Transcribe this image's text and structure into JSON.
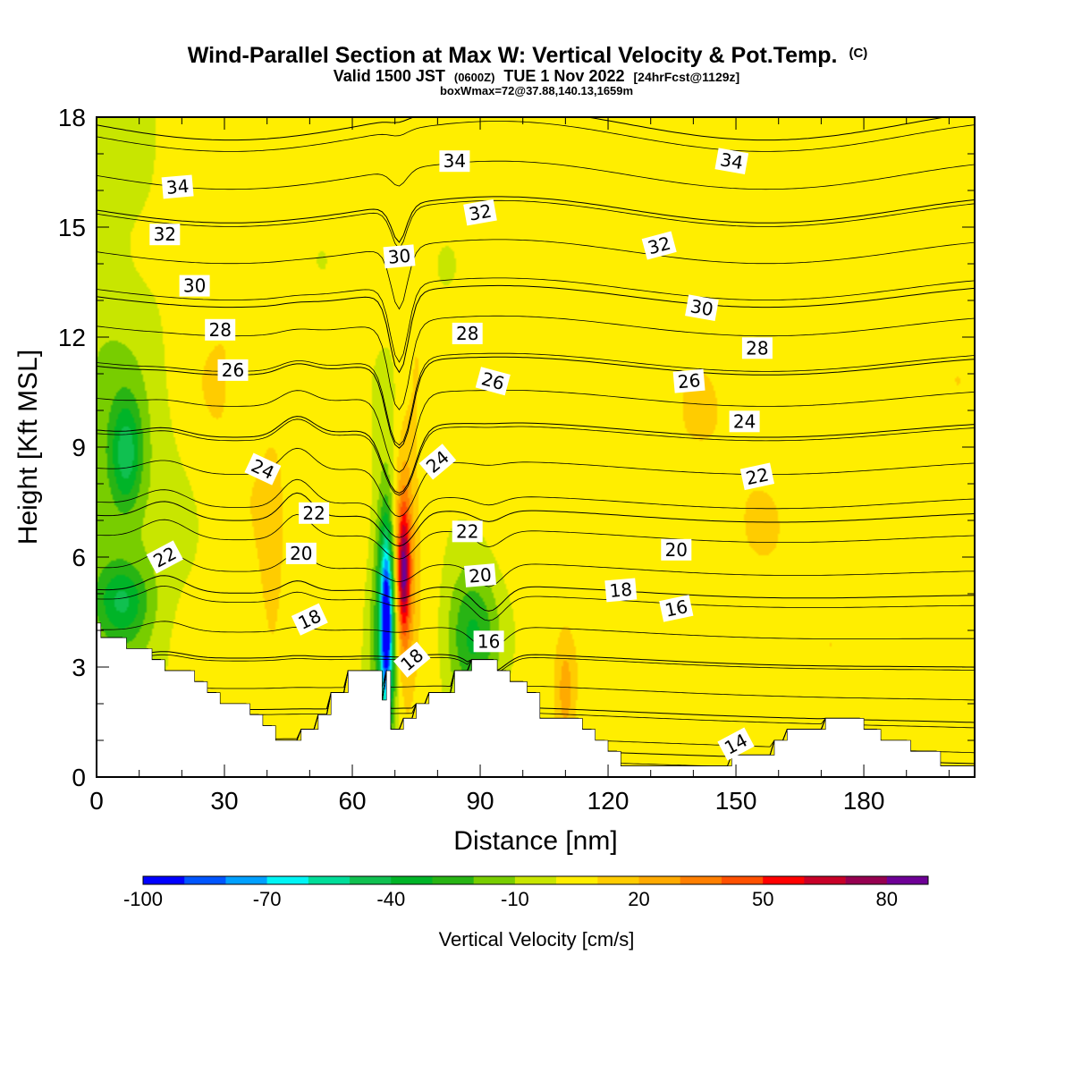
{
  "titles": {
    "main": "Wind-Parallel Section at Max W: Vertical Velocity & Pot.Temp.",
    "copyright": "(C)",
    "valid_prefix": "Valid 1500 JST",
    "valid_utc": "(0600Z)",
    "valid_date": "TUE 1 Nov 2022",
    "valid_fcst": "[24hrFcst@1129z]",
    "box": "boxWmax=72@37.88,140.13,1659m"
  },
  "chart_data": {
    "type": "contour",
    "xlabel": "Distance [nm]",
    "ylabel": "Height [Kft MSL]",
    "xlim": [
      0,
      206
    ],
    "ylim": [
      0,
      18
    ],
    "x_ticks": [
      0,
      30,
      60,
      90,
      120,
      150,
      180
    ],
    "y_ticks": [
      0,
      3,
      6,
      9,
      12,
      15,
      18
    ],
    "colorbar": {
      "label": "Vertical Velocity [cm/s]",
      "tick_values": [
        -100,
        -70,
        -40,
        -10,
        20,
        50,
        80
      ],
      "bounds": [
        -100,
        -90,
        -80,
        -70,
        -60,
        -50,
        -40,
        -30,
        -20,
        -10,
        0,
        10,
        20,
        30,
        40,
        50,
        60,
        70,
        80
      ],
      "colors": [
        "#0000ff",
        "#0055ff",
        "#00a0ff",
        "#00f5f5",
        "#00dd99",
        "#10c050",
        "#00b428",
        "#28b414",
        "#78cd00",
        "#c8e600",
        "#ffee00",
        "#ffcc00",
        "#ffaa00",
        "#ff7f00",
        "#ff5000",
        "#ff0000",
        "#c80028",
        "#960050",
        "#6e0096"
      ]
    },
    "terrain": [
      [
        0,
        4.2
      ],
      [
        1,
        4.2
      ],
      [
        1,
        4.2
      ],
      [
        1,
        3.8
      ],
      [
        7,
        3.8
      ],
      [
        7,
        3.5
      ],
      [
        13,
        3.5
      ],
      [
        13,
        3.2
      ],
      [
        16,
        3.2
      ],
      [
        16,
        2.9
      ],
      [
        23,
        2.9
      ],
      [
        23,
        2.6
      ],
      [
        26,
        2.6
      ],
      [
        26,
        2.3
      ],
      [
        29,
        2.3
      ],
      [
        29,
        2
      ],
      [
        36,
        2
      ],
      [
        36,
        1.7
      ],
      [
        39,
        1.7
      ],
      [
        39,
        1.4
      ],
      [
        42,
        1.4
      ],
      [
        42,
        1
      ],
      [
        48,
        1
      ],
      [
        48,
        1.3
      ],
      [
        52,
        1.3
      ],
      [
        52,
        1.7
      ],
      [
        55,
        1.7
      ],
      [
        55,
        2.3
      ],
      [
        59,
        2.3
      ],
      [
        59,
        2.9
      ],
      [
        67,
        2.9
      ],
      [
        67,
        2.1
      ],
      [
        68,
        2.1
      ],
      [
        68,
        2.9
      ],
      [
        69,
        2.9
      ],
      [
        69,
        1.3
      ],
      [
        72,
        1.3
      ],
      [
        72,
        1.6
      ],
      [
        75,
        1.6
      ],
      [
        75,
        2
      ],
      [
        78,
        2
      ],
      [
        78,
        2.3
      ],
      [
        84,
        2.3
      ],
      [
        84,
        2.9
      ],
      [
        88,
        2.9
      ],
      [
        88,
        3.2
      ],
      [
        94,
        3.2
      ],
      [
        94,
        2.9
      ],
      [
        97,
        2.9
      ],
      [
        97,
        2.6
      ],
      [
        101,
        2.6
      ],
      [
        101,
        2.3
      ],
      [
        104,
        2.3
      ],
      [
        104,
        1.6
      ],
      [
        114,
        1.6
      ],
      [
        114,
        1.3
      ],
      [
        117,
        1.3
      ],
      [
        117,
        1
      ],
      [
        120,
        1
      ],
      [
        120,
        0.7
      ],
      [
        123,
        0.7
      ],
      [
        123,
        0.3
      ],
      [
        149,
        0.3
      ],
      [
        149,
        0.6
      ],
      [
        159,
        0.6
      ],
      [
        159,
        1
      ],
      [
        162,
        1
      ],
      [
        162,
        1.3
      ],
      [
        171,
        1.3
      ],
      [
        171,
        1.6
      ],
      [
        180,
        1.6
      ],
      [
        180,
        1.3
      ],
      [
        184,
        1.3
      ],
      [
        184,
        1
      ],
      [
        191,
        1
      ],
      [
        191,
        0.7
      ],
      [
        198,
        0.7
      ],
      [
        198,
        0.3
      ],
      [
        206,
        0.3
      ]
    ],
    "velocity_features": [
      {
        "x": 3.5,
        "z": 6.5,
        "rx": 14,
        "rz": 11,
        "w": -18
      },
      {
        "x": 7,
        "z": 8.8,
        "rx": 3.5,
        "rz": 1.4,
        "w": -35
      },
      {
        "x": 6,
        "z": 4.8,
        "rx": 6,
        "rz": 1,
        "w": -30
      },
      {
        "x": 30,
        "z": 9.3,
        "rx": 8,
        "rz": 6,
        "w": 4
      },
      {
        "x": 41,
        "z": 5.2,
        "rx": 3,
        "rz": 3.5,
        "w": 10
      },
      {
        "x": 75,
        "z": 11.5,
        "rx": 3,
        "rz": 2.5,
        "w": 7
      },
      {
        "x": 101,
        "z": 11.3,
        "rx": 4,
        "rz": 4,
        "w": 3
      },
      {
        "x": 68,
        "z": 4.5,
        "rx": 3.6,
        "rz": 4,
        "w": -42
      },
      {
        "x": 68,
        "z": 4.2,
        "rx": 1.4,
        "rz": 2.4,
        "w": -78
      },
      {
        "x": 72,
        "z": 5.5,
        "rx": 2.6,
        "rz": 3.3,
        "w": 40
      },
      {
        "x": 72,
        "z": 5.6,
        "rx": 1.3,
        "rz": 1.6,
        "w": 50
      },
      {
        "x": 88,
        "z": 3.8,
        "rx": 6.5,
        "rz": 2,
        "w": -40
      },
      {
        "x": 110,
        "z": 2.3,
        "rx": 2,
        "rz": 1.4,
        "w": 18
      },
      {
        "x": 90,
        "z": 15.5,
        "rx": 22,
        "rz": 3,
        "w": -4
      },
      {
        "x": 145,
        "z": 9.5,
        "rx": 18,
        "rz": 7,
        "w": 2
      },
      {
        "x": 200,
        "z": 12,
        "rx": 6,
        "rz": 8,
        "w": 1
      }
    ],
    "isentropes": [
      {
        "base": 13.5,
        "label": "14"
      },
      {
        "base": 15,
        "label": "16"
      },
      {
        "base": 16.7,
        "label": "18"
      },
      {
        "base": 18.6,
        "label": "20"
      },
      {
        "base": 20.8,
        "label": "22"
      },
      {
        "base": 23.1,
        "label": "24"
      },
      {
        "base": 25.6,
        "label": "26"
      },
      {
        "base": 27.4,
        "label": "28"
      },
      {
        "base": 29.3,
        "label": "30"
      },
      {
        "base": 31.6,
        "label": "32"
      },
      {
        "base": 33.8,
        "label": "34"
      }
    ],
    "isentrope_labels": [
      {
        "x": 150,
        "z": 0.9,
        "text": "14",
        "angle": -28
      },
      {
        "x": 136,
        "z": 4.6,
        "text": "16",
        "angle": -12
      },
      {
        "x": 92,
        "z": 3.7,
        "text": "16",
        "angle": 0
      },
      {
        "x": 50,
        "z": 4.3,
        "text": "18",
        "angle": -25
      },
      {
        "x": 74,
        "z": 3.2,
        "text": "18",
        "angle": -40
      },
      {
        "x": 123,
        "z": 5.1,
        "text": "18",
        "angle": -5
      },
      {
        "x": 48,
        "z": 6.1,
        "text": "20",
        "angle": 0
      },
      {
        "x": 90,
        "z": 5.5,
        "text": "20",
        "angle": -5
      },
      {
        "x": 136,
        "z": 6.2,
        "text": "20",
        "angle": 0
      },
      {
        "x": 16,
        "z": 6,
        "text": "22",
        "angle": -28
      },
      {
        "x": 51,
        "z": 7.2,
        "text": "22",
        "angle": 0
      },
      {
        "x": 87,
        "z": 6.7,
        "text": "22",
        "angle": 0
      },
      {
        "x": 155,
        "z": 8.2,
        "text": "22",
        "angle": -12
      },
      {
        "x": 39,
        "z": 8.4,
        "text": "24",
        "angle": 25
      },
      {
        "x": 80,
        "z": 8.6,
        "text": "24",
        "angle": -40
      },
      {
        "x": 152,
        "z": 9.7,
        "text": "24",
        "angle": 0
      },
      {
        "x": 32,
        "z": 11.1,
        "text": "26",
        "angle": 0
      },
      {
        "x": 93,
        "z": 10.8,
        "text": "26",
        "angle": 15
      },
      {
        "x": 139,
        "z": 10.8,
        "text": "26",
        "angle": -5
      },
      {
        "x": 29,
        "z": 12.2,
        "text": "28",
        "angle": 0
      },
      {
        "x": 87,
        "z": 12.1,
        "text": "28",
        "angle": 0
      },
      {
        "x": 155,
        "z": 11.7,
        "text": "28",
        "angle": 0
      },
      {
        "x": 23,
        "z": 13.4,
        "text": "30",
        "angle": 0
      },
      {
        "x": 71,
        "z": 14.2,
        "text": "30",
        "angle": -5
      },
      {
        "x": 142,
        "z": 12.8,
        "text": "30",
        "angle": 10
      },
      {
        "x": 16,
        "z": 14.8,
        "text": "32",
        "angle": 0
      },
      {
        "x": 90,
        "z": 15.4,
        "text": "32",
        "angle": -10
      },
      {
        "x": 132,
        "z": 14.5,
        "text": "32",
        "angle": -15
      },
      {
        "x": 19,
        "z": 16.1,
        "text": "34",
        "angle": -5
      },
      {
        "x": 84,
        "z": 16.8,
        "text": "34",
        "angle": 0
      },
      {
        "x": 149,
        "z": 16.8,
        "text": "34",
        "angle": 10
      }
    ]
  }
}
